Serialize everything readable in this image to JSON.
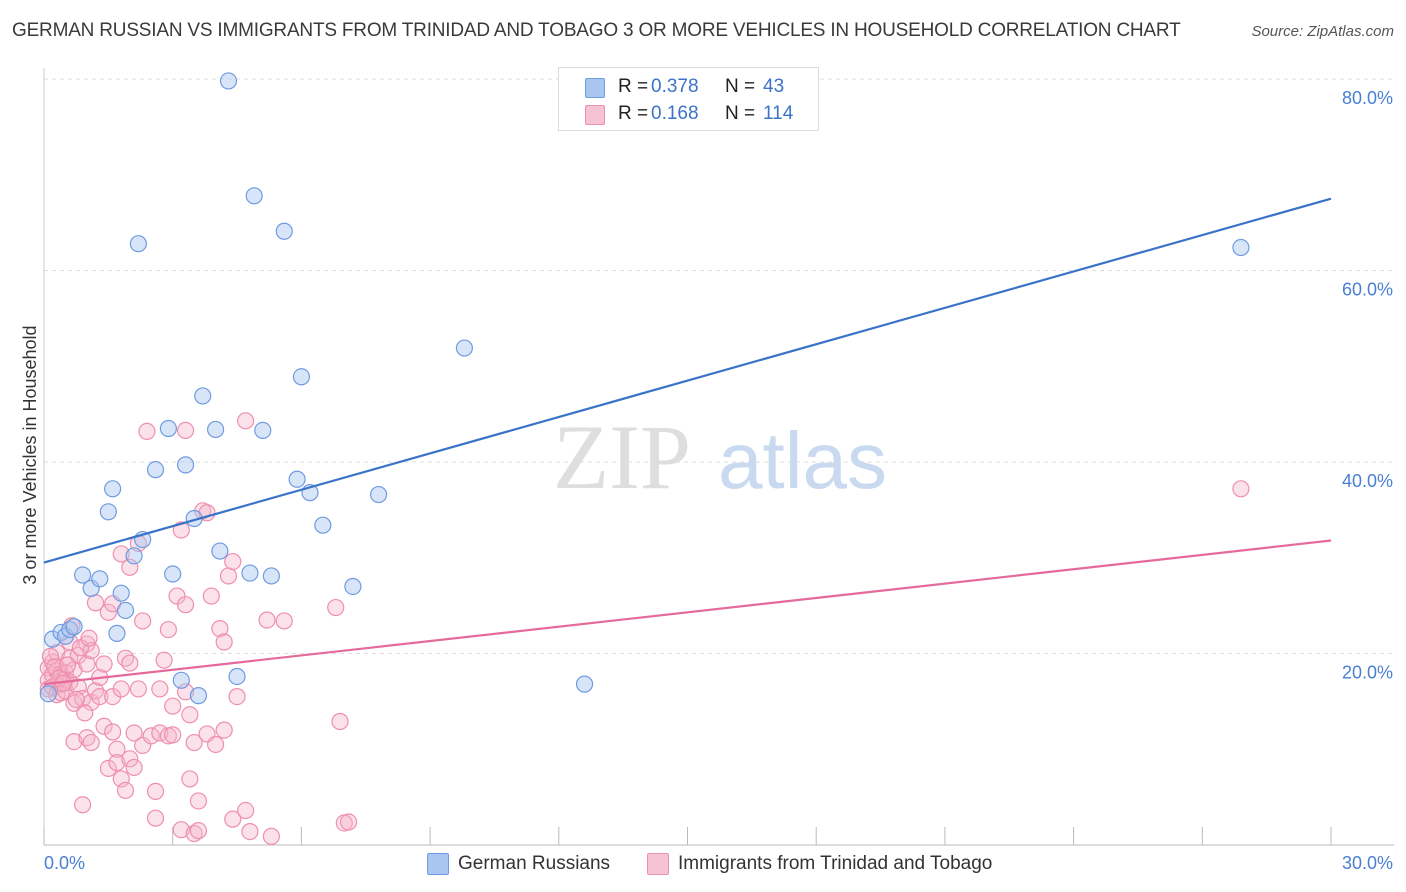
{
  "title": "GERMAN RUSSIAN VS IMMIGRANTS FROM TRINIDAD AND TOBAGO 3 OR MORE VEHICLES IN HOUSEHOLD CORRELATION CHART",
  "source": "Source: ZipAtlas.com",
  "watermark": {
    "zip": "ZIP",
    "atlas": "atlas"
  },
  "legend": {
    "rows": [
      {
        "r_label": "R =",
        "r_value": "0.378",
        "n_label": "N =",
        "n_value": "43",
        "color": "#a8c6f0"
      },
      {
        "r_label": "R =",
        "r_value": "0.168",
        "n_label": "N =",
        "n_value": "114",
        "color": "#f5b3c8"
      }
    ]
  },
  "bottom_legend": {
    "series1": "German Russians",
    "series2": "Immigrants from Trinidad and Tobago"
  },
  "chart_data": {
    "type": "scatter",
    "xlabel": "",
    "ylabel": "3 or more Vehicles in Household",
    "xlim": [
      0,
      30
    ],
    "ylim": [
      0,
      80
    ],
    "x_tick_labels": [
      "0.0%",
      "30.0%"
    ],
    "y_tick_values": [
      20,
      40,
      60,
      80
    ],
    "y_tick_labels": [
      "20.0%",
      "40.0%",
      "60.0%",
      "80.0%"
    ],
    "series": [
      {
        "name": "German Russians",
        "color": "#6f9be0",
        "fill": "#a8c6f0",
        "trend": {
          "x": [
            0,
            30
          ],
          "y": [
            29.5,
            67.5
          ],
          "color": "#3a73c8"
        },
        "points": [
          [
            0.2,
            21.5
          ],
          [
            0.4,
            22.2
          ],
          [
            0.5,
            21.8
          ],
          [
            0.6,
            22.5
          ],
          [
            0.7,
            22.8
          ],
          [
            0.9,
            28.2
          ],
          [
            1.1,
            26.8
          ],
          [
            1.3,
            27.8
          ],
          [
            1.5,
            34.8
          ],
          [
            1.6,
            37.2
          ],
          [
            1.7,
            22.1
          ],
          [
            1.8,
            26.3
          ],
          [
            1.9,
            24.5
          ],
          [
            2.1,
            30.2
          ],
          [
            2.2,
            62.8
          ],
          [
            2.3,
            31.9
          ],
          [
            2.6,
            39.2
          ],
          [
            2.9,
            43.5
          ],
          [
            3.0,
            28.3
          ],
          [
            3.2,
            17.2
          ],
          [
            3.3,
            39.7
          ],
          [
            3.5,
            34.1
          ],
          [
            3.6,
            15.6
          ],
          [
            3.7,
            46.9
          ],
          [
            4.0,
            43.4
          ],
          [
            4.1,
            30.7
          ],
          [
            4.3,
            79.8
          ],
          [
            4.5,
            17.6
          ],
          [
            4.8,
            28.4
          ],
          [
            4.9,
            67.8
          ],
          [
            5.1,
            43.3
          ],
          [
            5.3,
            28.1
          ],
          [
            5.6,
            64.1
          ],
          [
            5.9,
            38.2
          ],
          [
            6.0,
            48.9
          ],
          [
            6.2,
            36.8
          ],
          [
            6.5,
            33.4
          ],
          [
            7.2,
            27.0
          ],
          [
            7.8,
            36.6
          ],
          [
            9.8,
            51.9
          ],
          [
            12.6,
            16.8
          ],
          [
            27.9,
            62.4
          ],
          [
            0.1,
            15.8
          ]
        ]
      },
      {
        "name": "Immigrants from Trinidad and Tobago",
        "color": "#ef8fae",
        "fill": "#f5b3c8",
        "trend": {
          "x": [
            0,
            30
          ],
          "y": [
            16.8,
            31.8
          ],
          "color": "#e5699a"
        },
        "points": [
          [
            0.1,
            18.5
          ],
          [
            0.1,
            17.2
          ],
          [
            0.1,
            16.3
          ],
          [
            0.2,
            19.1
          ],
          [
            0.2,
            17.8
          ],
          [
            0.2,
            16.5
          ],
          [
            0.3,
            18.2
          ],
          [
            0.3,
            15.7
          ],
          [
            0.3,
            20.1
          ],
          [
            0.4,
            17.9
          ],
          [
            0.4,
            16.8
          ],
          [
            0.4,
            15.9
          ],
          [
            0.5,
            18.0
          ],
          [
            0.5,
            17.3
          ],
          [
            0.5,
            16.1
          ],
          [
            0.6,
            19.5
          ],
          [
            0.6,
            17.0
          ],
          [
            0.6,
            21.2
          ],
          [
            0.7,
            18.3
          ],
          [
            0.7,
            10.8
          ],
          [
            0.7,
            14.8
          ],
          [
            0.8,
            19.8
          ],
          [
            0.8,
            16.5
          ],
          [
            0.9,
            4.2
          ],
          [
            0.9,
            15.3
          ],
          [
            1.0,
            18.9
          ],
          [
            1.0,
            21.0
          ],
          [
            1.0,
            11.2
          ],
          [
            1.1,
            20.3
          ],
          [
            1.1,
            14.9
          ],
          [
            1.1,
            10.7
          ],
          [
            1.2,
            16.1
          ],
          [
            1.2,
            25.3
          ],
          [
            1.3,
            17.5
          ],
          [
            1.3,
            15.5
          ],
          [
            1.4,
            18.9
          ],
          [
            1.4,
            12.4
          ],
          [
            1.5,
            8.0
          ],
          [
            1.5,
            24.3
          ],
          [
            1.6,
            15.5
          ],
          [
            1.6,
            11.8
          ],
          [
            1.6,
            25.2
          ],
          [
            1.7,
            10.0
          ],
          [
            1.7,
            8.6
          ],
          [
            1.8,
            16.3
          ],
          [
            1.8,
            6.9
          ],
          [
            1.8,
            30.4
          ],
          [
            1.9,
            19.5
          ],
          [
            1.9,
            5.7
          ],
          [
            2.0,
            29.0
          ],
          [
            2.0,
            19.0
          ],
          [
            2.0,
            9.0
          ],
          [
            2.1,
            11.7
          ],
          [
            2.1,
            8.1
          ],
          [
            2.2,
            16.3
          ],
          [
            2.2,
            31.5
          ],
          [
            2.3,
            23.4
          ],
          [
            2.3,
            10.4
          ],
          [
            2.4,
            43.2
          ],
          [
            2.5,
            11.4
          ],
          [
            2.6,
            2.8
          ],
          [
            2.6,
            5.6
          ],
          [
            2.7,
            11.7
          ],
          [
            2.7,
            16.3
          ],
          [
            2.8,
            19.3
          ],
          [
            2.9,
            11.4
          ],
          [
            2.9,
            22.5
          ],
          [
            3.0,
            14.5
          ],
          [
            3.0,
            11.5
          ],
          [
            3.1,
            26.0
          ],
          [
            3.2,
            1.6
          ],
          [
            3.2,
            32.9
          ],
          [
            3.3,
            25.1
          ],
          [
            3.3,
            43.3
          ],
          [
            3.3,
            16.0
          ],
          [
            3.4,
            13.6
          ],
          [
            3.4,
            6.9
          ],
          [
            3.5,
            10.7
          ],
          [
            3.5,
            1.2
          ],
          [
            3.6,
            1.5
          ],
          [
            3.6,
            4.6
          ],
          [
            3.7,
            34.9
          ],
          [
            3.8,
            34.7
          ],
          [
            3.8,
            11.6
          ],
          [
            3.9,
            26.0
          ],
          [
            4.0,
            10.5
          ],
          [
            4.1,
            22.6
          ],
          [
            4.2,
            21.2
          ],
          [
            4.2,
            12.0
          ],
          [
            4.3,
            28.1
          ],
          [
            4.4,
            29.6
          ],
          [
            4.5,
            15.5
          ],
          [
            4.7,
            44.3
          ],
          [
            4.7,
            3.6
          ],
          [
            4.8,
            1.4
          ],
          [
            5.2,
            23.5
          ],
          [
            5.3,
            0.9
          ],
          [
            5.6,
            23.4
          ],
          [
            6.8,
            24.8
          ],
          [
            6.9,
            12.9
          ],
          [
            7.0,
            2.3
          ],
          [
            7.1,
            2.4
          ],
          [
            0.15,
            19.7
          ],
          [
            0.25,
            18.6
          ],
          [
            0.35,
            17.4
          ],
          [
            0.45,
            16.9
          ],
          [
            0.55,
            18.8
          ],
          [
            0.65,
            22.9
          ],
          [
            0.75,
            15.2
          ],
          [
            0.85,
            20.6
          ],
          [
            0.95,
            13.8
          ],
          [
            1.05,
            21.6
          ],
          [
            27.9,
            37.2
          ],
          [
            4.4,
            2.7
          ]
        ]
      }
    ]
  }
}
